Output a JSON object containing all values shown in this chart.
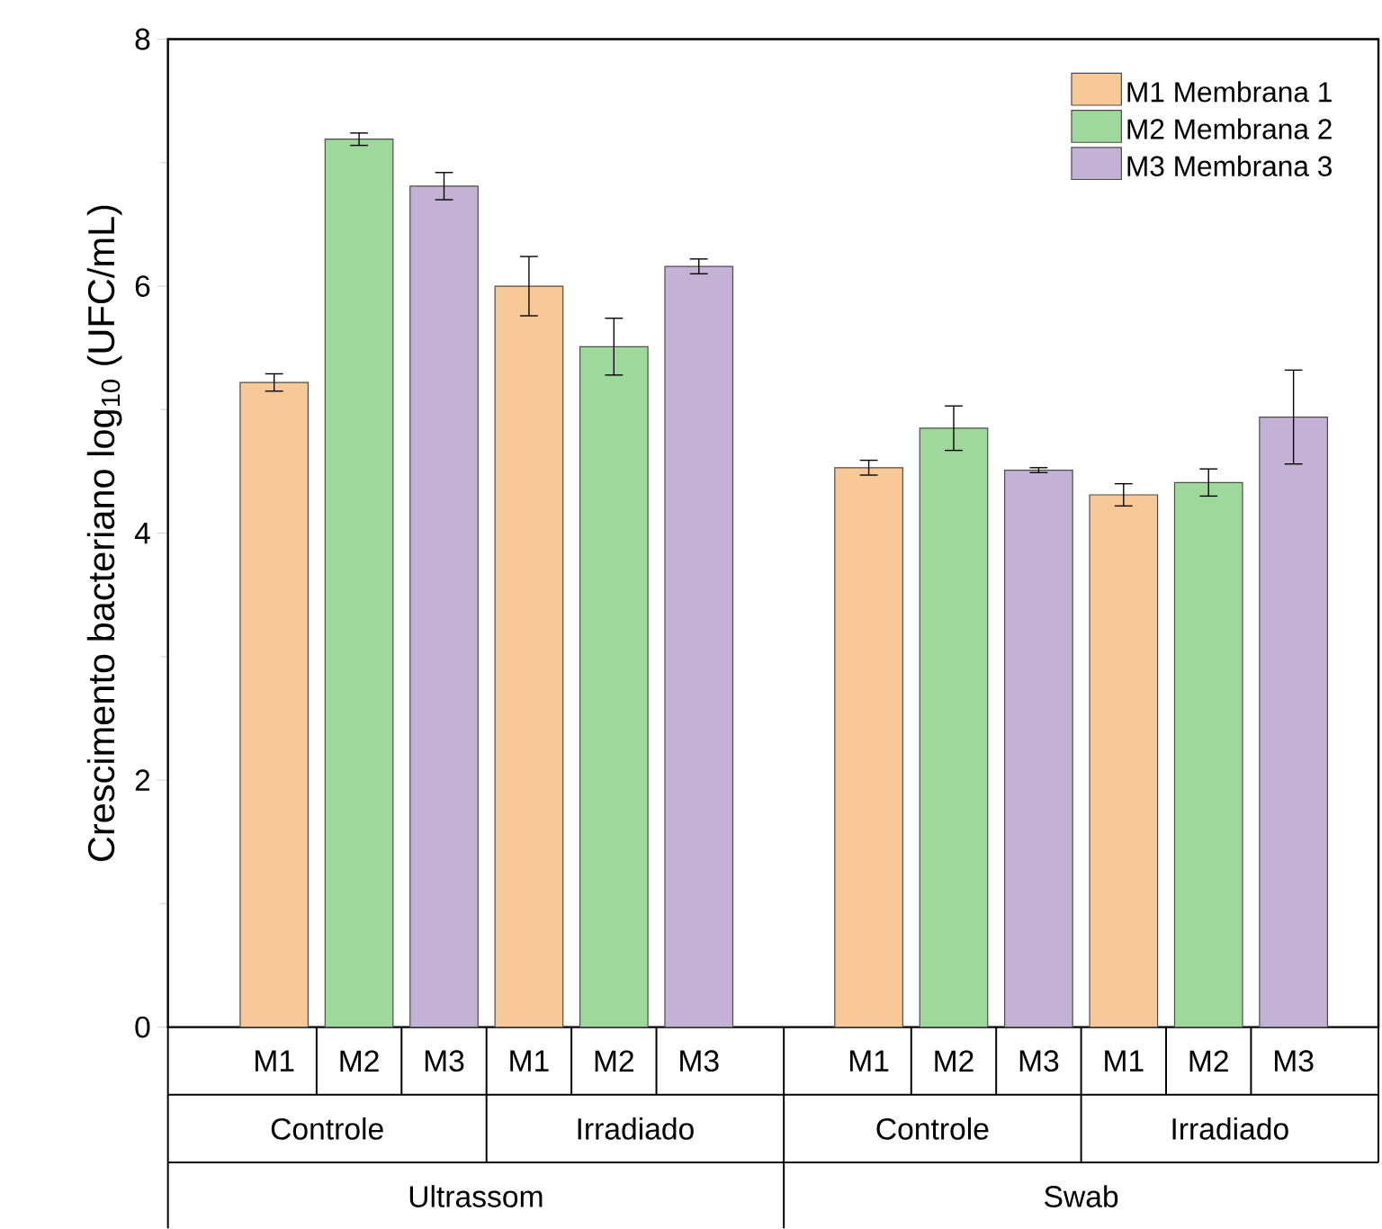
{
  "chart_data": {
    "type": "bar",
    "ylabel": "Crescimento bacteriano log$_{10}$ (UFC/mL)",
    "categories": [
      "M1",
      "M2",
      "M3",
      "M1",
      "M2",
      "M3",
      null,
      "M1",
      "M2",
      "M3",
      "M1",
      "M2",
      "M3"
    ],
    "series": [
      {
        "name": "M1 Membrana 1",
        "color": "#f9c897",
        "values": [
          5.22,
          null,
          null,
          6.0,
          null,
          null,
          null,
          4.53,
          null,
          null,
          4.31,
          null,
          null
        ],
        "errors": [
          0.07,
          null,
          null,
          0.24,
          null,
          null,
          null,
          0.06,
          null,
          null,
          0.09,
          null,
          null
        ]
      },
      {
        "name": "M2 Membrana 2",
        "color": "#9fd89b",
        "values": [
          null,
          7.19,
          null,
          null,
          5.51,
          null,
          null,
          null,
          4.85,
          null,
          null,
          4.41,
          null
        ],
        "errors": [
          null,
          0.05,
          null,
          null,
          0.23,
          null,
          null,
          null,
          0.18,
          null,
          null,
          0.11,
          null
        ]
      },
      {
        "name": "M3 Membrana 3",
        "color": "#c3b2d6",
        "values": [
          null,
          null,
          6.81,
          null,
          null,
          6.16,
          null,
          null,
          null,
          4.51,
          null,
          null,
          4.94
        ],
        "errors": [
          null,
          null,
          0.11,
          null,
          null,
          0.06,
          null,
          null,
          null,
          0.02,
          null,
          null,
          0.38
        ]
      }
    ],
    "annotations": [
      "Controle",
      "Irradiado",
      "Controle",
      "Irradiado",
      "Ultrassom",
      "Swab"
    ],
    "ylim": [
      0,
      8
    ],
    "yticks": [
      0,
      2,
      4,
      6,
      8
    ],
    "grid": false,
    "legend": "top right"
  }
}
